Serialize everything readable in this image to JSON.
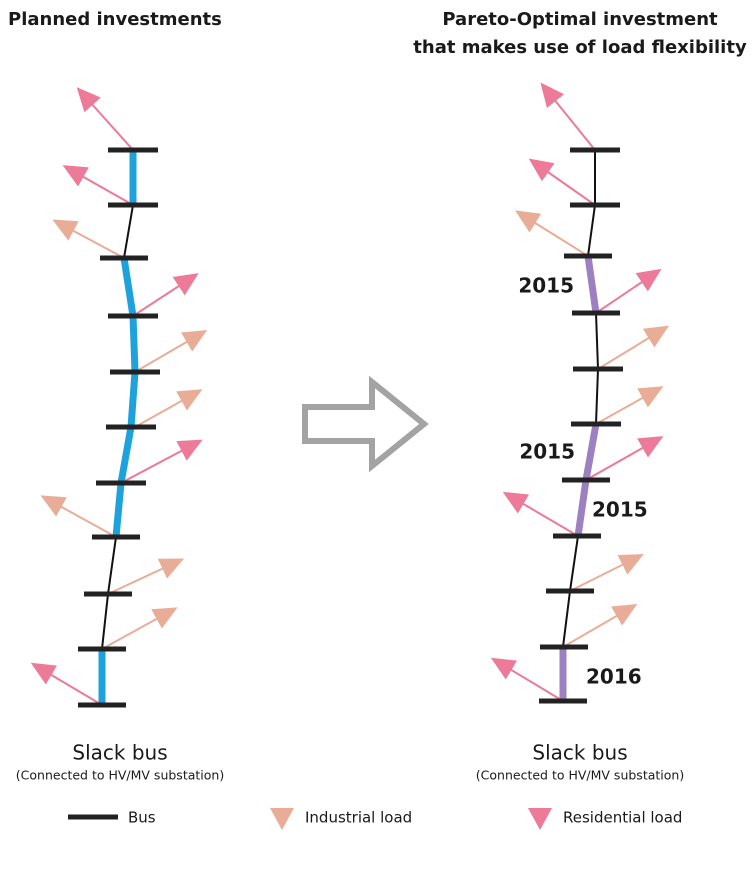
{
  "left_panel": {
    "title": "Planned investments",
    "slack_label": "Slack bus",
    "slack_note": "(Connected to HV/MV substation)"
  },
  "right_panel": {
    "title_lines": [
      "Pareto-Optimal investment",
      "that makes use of load flexibility"
    ],
    "slack_label": "Slack bus",
    "slack_note": "(Connected to HV/MV substation)",
    "annotations": [
      "2015",
      "2015",
      "2015",
      "2016"
    ]
  },
  "legend": {
    "items": [
      "Bus",
      "Industrial load",
      "Residential load"
    ]
  }
}
